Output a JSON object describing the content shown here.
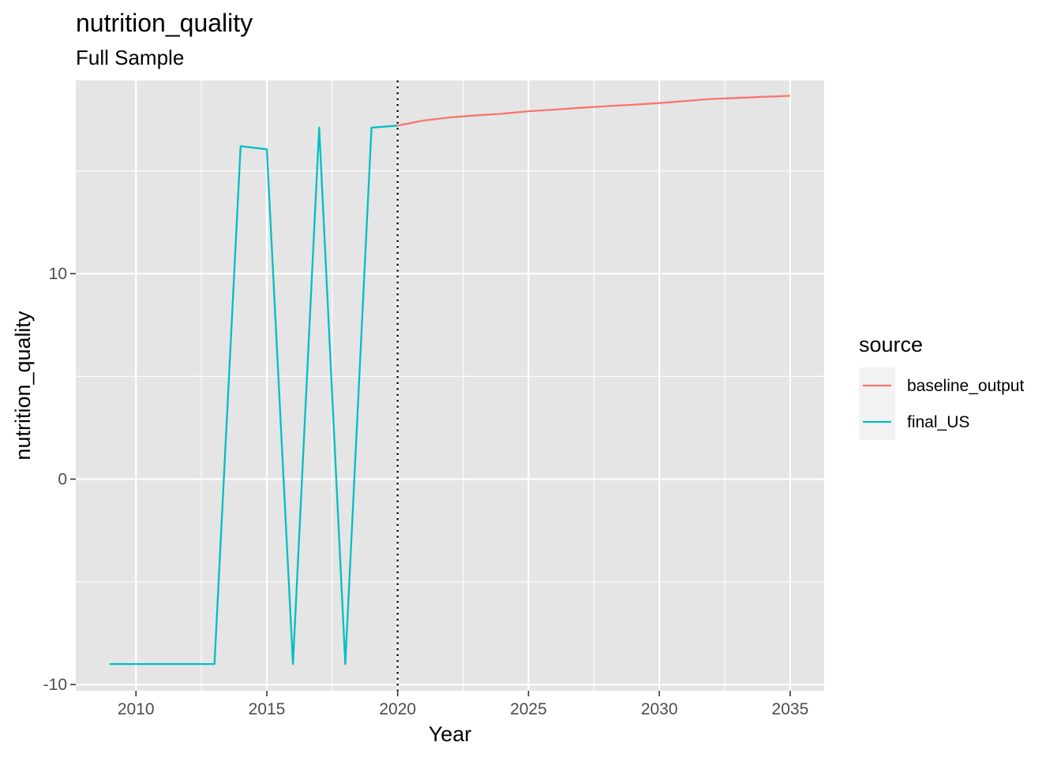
{
  "chart_data": {
    "type": "line",
    "title": "nutrition_quality",
    "subtitle": "Full Sample",
    "xlabel": "Year",
    "ylabel": "nutrition_quality",
    "xlim": [
      2007.7,
      2036.3
    ],
    "ylim": [
      -10.3,
      19.4
    ],
    "x_ticks": [
      2010,
      2015,
      2020,
      2025,
      2030,
      2035
    ],
    "x_tick_labels": [
      "2010",
      "2015",
      "2020",
      "2025",
      "2030",
      "2035"
    ],
    "x_minor_ticks": [
      2012.5,
      2017.5,
      2022.5,
      2027.5,
      2032.5
    ],
    "y_ticks": [
      -10,
      0,
      10
    ],
    "y_tick_labels": [
      "-10",
      "0",
      "10"
    ],
    "y_minor_ticks": [
      -5,
      5,
      15
    ],
    "grid": true,
    "panel_background": "#e5e5e5",
    "grid_color": "#ffffff",
    "vline": {
      "x": 2020,
      "style": "dotted",
      "color": "#000000"
    },
    "legend": {
      "title": "source",
      "position": "right"
    },
    "series": [
      {
        "name": "baseline_output",
        "color": "#f8766d",
        "x": [
          2020,
          2021,
          2022,
          2023,
          2024,
          2025,
          2026,
          2027,
          2028,
          2029,
          2030,
          2031,
          2032,
          2033,
          2034,
          2035
        ],
        "y": [
          17.2,
          17.45,
          17.6,
          17.7,
          17.78,
          17.9,
          17.98,
          18.07,
          18.15,
          18.22,
          18.3,
          18.4,
          18.5,
          18.55,
          18.6,
          18.65
        ]
      },
      {
        "name": "final_US",
        "color": "#00bfc4",
        "x": [
          2009,
          2010,
          2011,
          2012,
          2013,
          2014,
          2015,
          2016,
          2017,
          2018,
          2019,
          2020
        ],
        "y": [
          -9,
          -9,
          -9,
          -9,
          -9,
          16.2,
          16.05,
          -9,
          17.1,
          -9,
          17.1,
          17.2
        ]
      }
    ]
  }
}
